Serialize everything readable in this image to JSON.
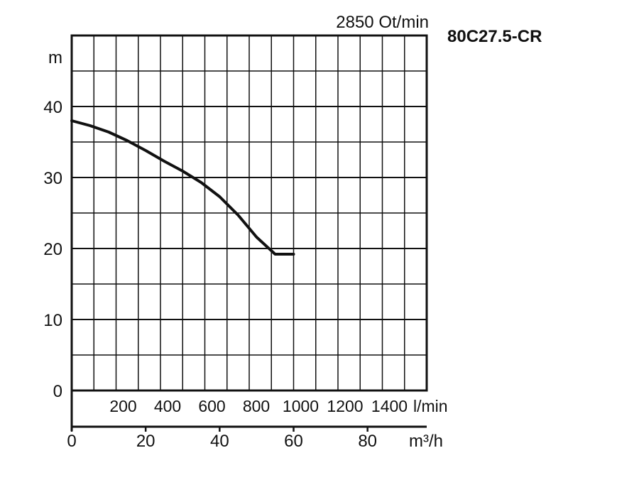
{
  "model_label": "80C27.5-CR",
  "speed_label": "2850 Ot/min",
  "chart_data": {
    "type": "line",
    "title": "",
    "ylabel": "m",
    "ylim": [
      0,
      50
    ],
    "yticks": [
      0,
      10,
      20,
      30,
      40
    ],
    "grid": true,
    "x_primary": {
      "unit": "m³/h",
      "xlim": [
        0,
        96
      ],
      "ticks": [
        0,
        20,
        40,
        60,
        80
      ]
    },
    "x_secondary": {
      "unit": "l/min",
      "ticks": [
        200,
        400,
        600,
        800,
        1000,
        1200,
        1400
      ]
    },
    "series": [
      {
        "x": [
          0,
          5,
          10,
          15,
          20,
          25,
          30,
          35,
          40,
          45,
          50,
          55,
          60
        ],
        "y": [
          38,
          37.3,
          36.4,
          35.2,
          33.8,
          32.3,
          30.9,
          29.3,
          27.3,
          24.7,
          21.6,
          19.2,
          19.2
        ]
      }
    ]
  }
}
